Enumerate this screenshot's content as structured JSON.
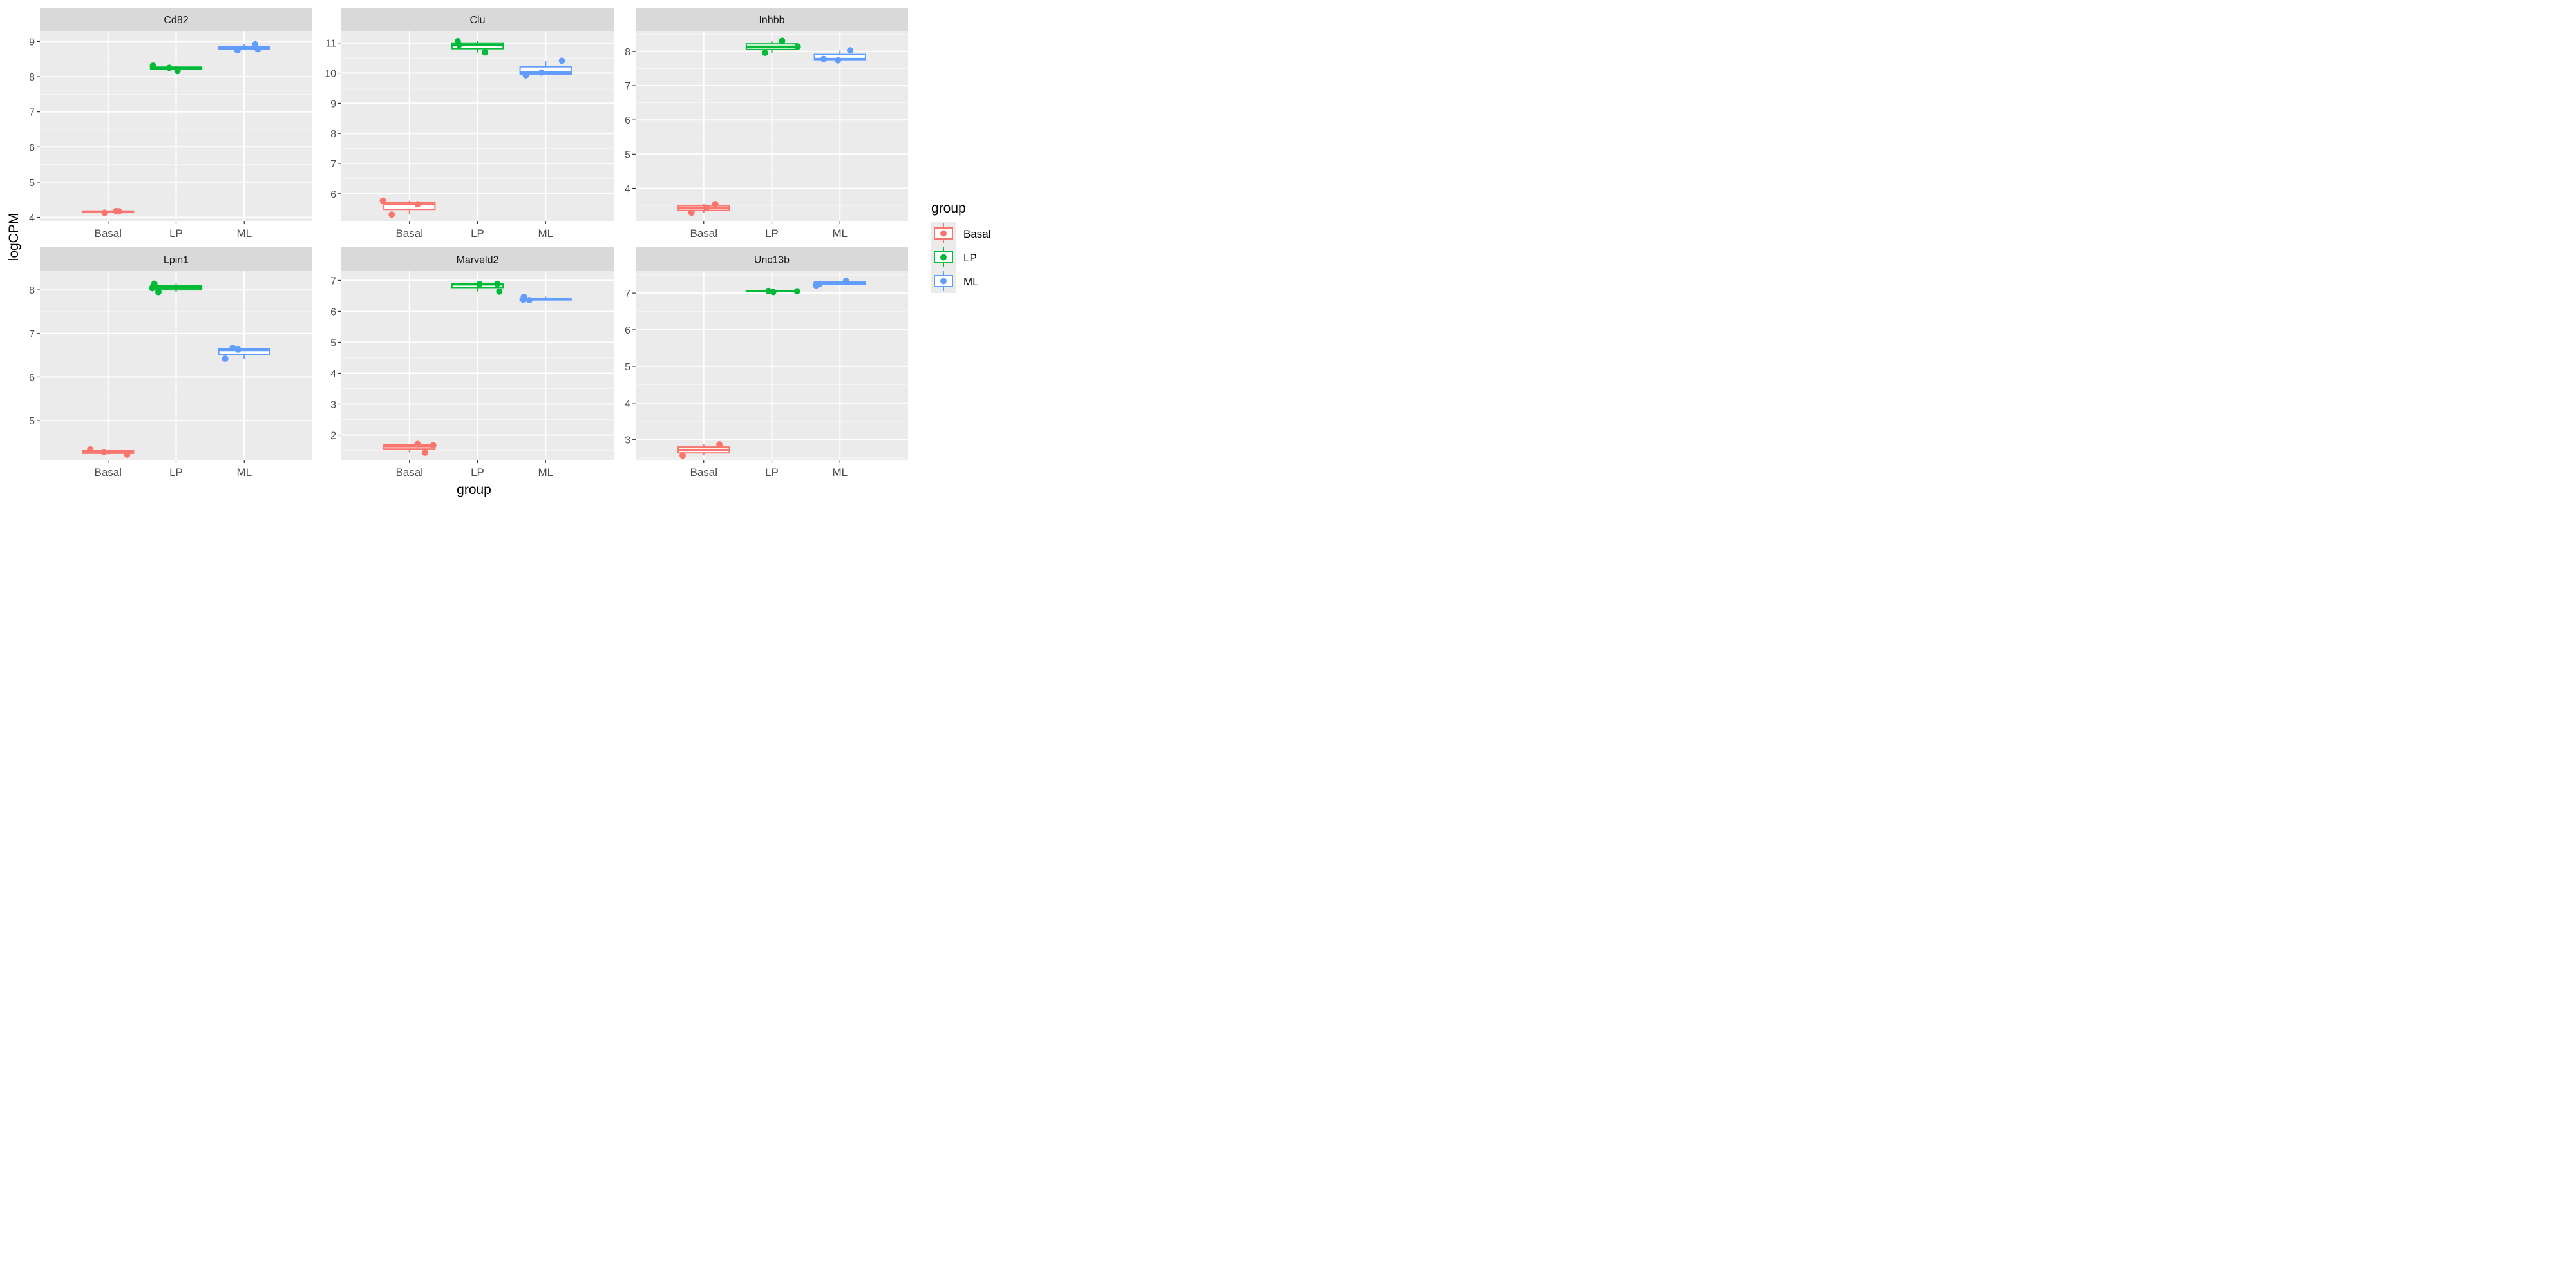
{
  "chart_data": {
    "type": "box",
    "xlabel": "group",
    "ylabel": "logCPM",
    "legend": {
      "title": "group",
      "placement": "right",
      "entries": [
        {
          "name": "Basal",
          "color": "#F8766D"
        },
        {
          "name": "LP",
          "color": "#00BA38"
        },
        {
          "name": "ML",
          "color": "#619CFF"
        }
      ]
    },
    "categories": [
      "Basal",
      "LP",
      "ML"
    ],
    "colors": {
      "Basal": "#F8766D",
      "LP": "#00BA38",
      "ML": "#619CFF"
    },
    "panels": [
      {
        "title": "Cd82",
        "ylim": [
          3.9,
          9.3
        ],
        "yticks": [
          4,
          5,
          6,
          7,
          8,
          9
        ],
        "boxes": [
          {
            "group": "Basal",
            "min": 4.13,
            "q1": 4.14,
            "median": 4.16,
            "q3": 4.18,
            "max": 4.19
          },
          {
            "group": "LP",
            "min": 8.18,
            "q1": 8.21,
            "median": 8.24,
            "q3": 8.27,
            "max": 8.3
          },
          {
            "group": "ML",
            "min": 8.75,
            "q1": 8.78,
            "median": 8.81,
            "q3": 8.86,
            "max": 8.92
          }
        ],
        "points": [
          {
            "group": "Basal",
            "offset": -0.05,
            "y": 4.13
          },
          {
            "group": "Basal",
            "offset": 0.12,
            "y": 4.18
          },
          {
            "group": "Basal",
            "offset": 0.16,
            "y": 4.17
          },
          {
            "group": "LP",
            "offset": -0.34,
            "y": 8.31
          },
          {
            "group": "LP",
            "offset": -0.1,
            "y": 8.25
          },
          {
            "group": "LP",
            "offset": 0.02,
            "y": 8.16
          },
          {
            "group": "ML",
            "offset": -0.1,
            "y": 8.75
          },
          {
            "group": "ML",
            "offset": 0.16,
            "y": 8.92
          },
          {
            "group": "ML",
            "offset": 0.2,
            "y": 8.78
          }
        ]
      },
      {
        "title": "Clu",
        "ylim": [
          5.1,
          11.4
        ],
        "yticks": [
          6,
          7,
          8,
          9,
          10,
          11
        ],
        "boxes": [
          {
            "group": "Basal",
            "min": 5.32,
            "q1": 5.48,
            "median": 5.65,
            "q3": 5.71,
            "max": 5.77
          },
          {
            "group": "LP",
            "min": 10.68,
            "q1": 10.81,
            "median": 10.94,
            "q3": 11.0,
            "max": 11.06
          },
          {
            "group": "ML",
            "min": 9.93,
            "q1": 9.97,
            "median": 10.02,
            "q3": 10.21,
            "max": 10.4
          }
        ],
        "points": [
          {
            "group": "Basal",
            "offset": -0.39,
            "y": 5.77
          },
          {
            "group": "Basal",
            "offset": -0.26,
            "y": 5.31
          },
          {
            "group": "Basal",
            "offset": 0.12,
            "y": 5.65
          },
          {
            "group": "LP",
            "offset": -0.29,
            "y": 11.06
          },
          {
            "group": "LP",
            "offset": -0.27,
            "y": 10.94
          },
          {
            "group": "LP",
            "offset": 0.11,
            "y": 10.69
          },
          {
            "group": "ML",
            "offset": -0.29,
            "y": 9.93
          },
          {
            "group": "ML",
            "offset": -0.06,
            "y": 10.02
          },
          {
            "group": "ML",
            "offset": 0.24,
            "y": 10.41
          }
        ]
      },
      {
        "title": "Inhbb",
        "ylim": [
          3.05,
          8.6
        ],
        "yticks": [
          4,
          5,
          6,
          7,
          8
        ],
        "boxes": [
          {
            "group": "Basal",
            "min": 3.29,
            "q1": 3.36,
            "median": 3.43,
            "q3": 3.49,
            "max": 3.54
          },
          {
            "group": "LP",
            "min": 7.96,
            "q1": 8.06,
            "median": 8.14,
            "q3": 8.22,
            "max": 8.31
          },
          {
            "group": "ML",
            "min": 7.74,
            "q1": 7.76,
            "median": 7.78,
            "q3": 7.91,
            "max": 8.03
          }
        ],
        "points": [
          {
            "group": "Basal",
            "offset": -0.18,
            "y": 3.29
          },
          {
            "group": "Basal",
            "offset": 0.04,
            "y": 3.43
          },
          {
            "group": "Basal",
            "offset": 0.17,
            "y": 3.54
          },
          {
            "group": "LP",
            "offset": -0.1,
            "y": 7.96
          },
          {
            "group": "LP",
            "offset": 0.15,
            "y": 8.31
          },
          {
            "group": "LP",
            "offset": 0.38,
            "y": 8.14
          },
          {
            "group": "ML",
            "offset": -0.24,
            "y": 7.78
          },
          {
            "group": "ML",
            "offset": -0.03,
            "y": 7.74
          },
          {
            "group": "ML",
            "offset": 0.15,
            "y": 8.03
          }
        ]
      },
      {
        "title": "Lpin1",
        "ylim": [
          4.1,
          8.43
        ],
        "yticks": [
          5,
          6,
          7,
          8
        ],
        "boxes": [
          {
            "group": "Basal",
            "min": 4.22,
            "q1": 4.25,
            "median": 4.28,
            "q3": 4.31,
            "max": 4.34
          },
          {
            "group": "LP",
            "min": 7.95,
            "q1": 8.0,
            "median": 8.05,
            "q3": 8.09,
            "max": 8.14
          },
          {
            "group": "ML",
            "min": 6.42,
            "q1": 6.52,
            "median": 6.62,
            "q3": 6.65,
            "max": 6.67
          }
        ],
        "points": [
          {
            "group": "Basal",
            "offset": -0.26,
            "y": 4.34
          },
          {
            "group": "Basal",
            "offset": -0.06,
            "y": 4.28
          },
          {
            "group": "Basal",
            "offset": 0.28,
            "y": 4.22
          },
          {
            "group": "LP",
            "offset": -0.35,
            "y": 8.04
          },
          {
            "group": "LP",
            "offset": -0.32,
            "y": 8.14
          },
          {
            "group": "LP",
            "offset": -0.26,
            "y": 7.95
          },
          {
            "group": "ML",
            "offset": -0.28,
            "y": 6.42
          },
          {
            "group": "ML",
            "offset": -0.17,
            "y": 6.67
          },
          {
            "group": "ML",
            "offset": -0.09,
            "y": 6.63
          }
        ]
      },
      {
        "title": "Marveld2",
        "ylim": [
          1.2,
          7.3
        ],
        "yticks": [
          2,
          3,
          4,
          5,
          6,
          7
        ],
        "boxes": [
          {
            "group": "Basal",
            "min": 1.44,
            "q1": 1.55,
            "median": 1.64,
            "q3": 1.69,
            "max": 1.71
          },
          {
            "group": "LP",
            "min": 6.64,
            "q1": 6.77,
            "median": 6.87,
            "q3": 6.88,
            "max": 6.9
          },
          {
            "group": "ML",
            "min": 6.36,
            "q1": 6.37,
            "median": 6.39,
            "q3": 6.4,
            "max": 6.48
          }
        ],
        "points": [
          {
            "group": "Basal",
            "offset": 0.12,
            "y": 1.71
          },
          {
            "group": "Basal",
            "offset": 0.23,
            "y": 1.43
          },
          {
            "group": "Basal",
            "offset": 0.35,
            "y": 1.67
          },
          {
            "group": "LP",
            "offset": 0.03,
            "y": 6.88
          },
          {
            "group": "LP",
            "offset": 0.29,
            "y": 6.89
          },
          {
            "group": "LP",
            "offset": 0.32,
            "y": 6.64
          },
          {
            "group": "ML",
            "offset": -0.33,
            "y": 6.38
          },
          {
            "group": "ML",
            "offset": -0.32,
            "y": 6.47
          },
          {
            "group": "ML",
            "offset": -0.24,
            "y": 6.36
          }
        ]
      },
      {
        "title": "Unc13b",
        "ylim": [
          2.45,
          7.6
        ],
        "yticks": [
          3,
          4,
          5,
          6,
          7
        ],
        "boxes": [
          {
            "group": "Basal",
            "min": 2.57,
            "q1": 2.64,
            "median": 2.72,
            "q3": 2.8,
            "max": 2.87
          },
          {
            "group": "LP",
            "min": 7.03,
            "q1": 7.04,
            "median": 7.05,
            "q3": 7.06,
            "max": 7.07
          },
          {
            "group": "ML",
            "min": 7.22,
            "q1": 7.24,
            "median": 7.27,
            "q3": 7.3,
            "max": 7.33
          }
        ],
        "points": [
          {
            "group": "Basal",
            "offset": -0.31,
            "y": 2.57
          },
          {
            "group": "Basal",
            "offset": 0.23,
            "y": 2.87
          },
          {
            "group": "LP",
            "offset": -0.05,
            "y": 7.06
          },
          {
            "group": "LP",
            "offset": 0.02,
            "y": 7.03
          },
          {
            "group": "LP",
            "offset": 0.37,
            "y": 7.05
          },
          {
            "group": "ML",
            "offset": -0.35,
            "y": 7.21
          },
          {
            "group": "ML",
            "offset": -0.3,
            "y": 7.25
          },
          {
            "group": "ML",
            "offset": 0.09,
            "y": 7.33
          }
        ]
      }
    ]
  }
}
